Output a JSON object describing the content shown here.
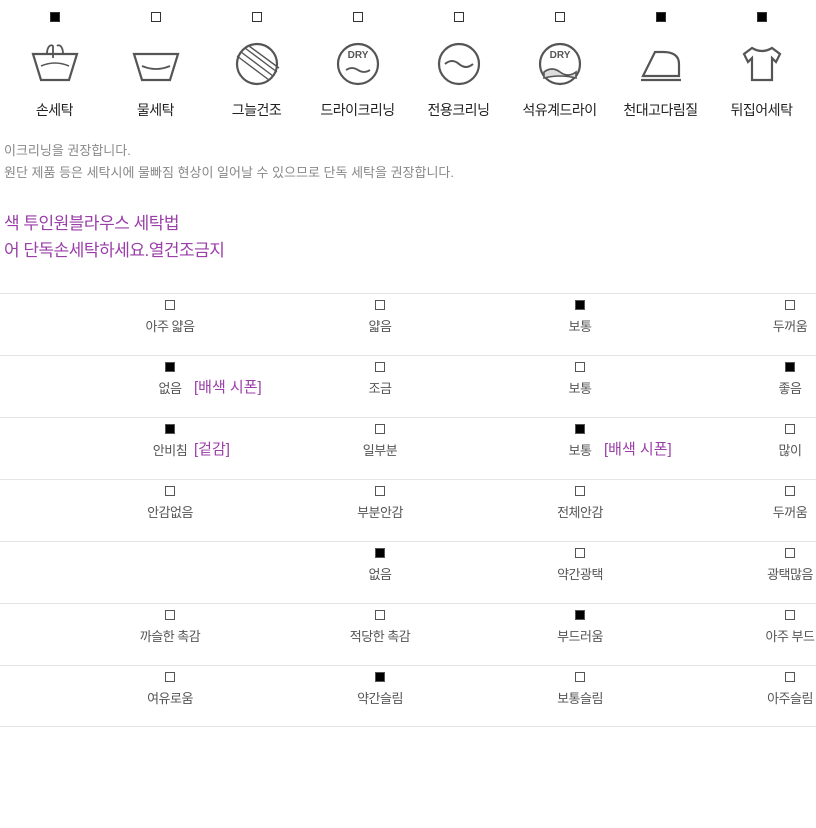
{
  "colors": {
    "accent": "#9a3ea8",
    "text": "#222",
    "muted": "#888",
    "line": "#e4e4e4"
  },
  "care": [
    {
      "label": "손세탁",
      "checked": true,
      "icon": "hand"
    },
    {
      "label": "물세탁",
      "checked": false,
      "icon": "basin"
    },
    {
      "label": "그늘건조",
      "checked": false,
      "icon": "shade"
    },
    {
      "label": "드라이크리닝",
      "checked": false,
      "icon": "dry"
    },
    {
      "label": "전용크리닝",
      "checked": false,
      "icon": "special"
    },
    {
      "label": "석유계드라이",
      "checked": false,
      "icon": "petdry"
    },
    {
      "label": "천대고다림질",
      "checked": true,
      "icon": "iron"
    },
    {
      "label": "뒤집어세탁",
      "checked": true,
      "icon": "shirt"
    }
  ],
  "notes": [
    "이크리닝을 권장합니다.",
    "원단 제품 등은 세탁시에 물빠짐 현상이 일어날 수 있으므로 단독 세탁을 권장합니다."
  ],
  "purple": [
    "색 투인원블라우스 세탁법",
    "어 단독손세탁하세요.열건조금지"
  ],
  "cols": [
    170,
    380,
    580,
    790
  ],
  "rows": [
    {
      "labels": [
        "아주 얇음",
        "얇음",
        "보통",
        "두꺼움"
      ],
      "filled": [
        false,
        false,
        true,
        false
      ],
      "tags": []
    },
    {
      "labels": [
        "없음",
        "조금",
        "보통",
        "좋음"
      ],
      "filled": [
        true,
        false,
        false,
        true
      ],
      "tags": [
        {
          "after": 0,
          "text": "[배색 시폰]"
        }
      ]
    },
    {
      "labels": [
        "안비침",
        "일부분",
        "보통",
        "많이"
      ],
      "filled": [
        true,
        false,
        true,
        false
      ],
      "tags": [
        {
          "after": 0,
          "text": "[겉감]"
        },
        {
          "after": 2,
          "text": "[배색 시폰]"
        }
      ]
    },
    {
      "labels": [
        "안감없음",
        "부분안감",
        "전체안감",
        "두꺼움"
      ],
      "filled": [
        false,
        false,
        false,
        false
      ],
      "tags": []
    },
    {
      "labels": [
        "",
        "없음",
        "약간광택",
        "광택많음"
      ],
      "filled": [
        false,
        true,
        false,
        false
      ],
      "tags": []
    },
    {
      "labels": [
        "까슬한 촉감",
        "적당한 촉감",
        "부드러움",
        "아주 부드"
      ],
      "filled": [
        false,
        false,
        true,
        false
      ],
      "tags": []
    },
    {
      "labels": [
        "여유로움",
        "약간슬림",
        "보통슬림",
        "아주슬림"
      ],
      "filled": [
        false,
        true,
        false,
        false
      ],
      "tags": []
    }
  ]
}
